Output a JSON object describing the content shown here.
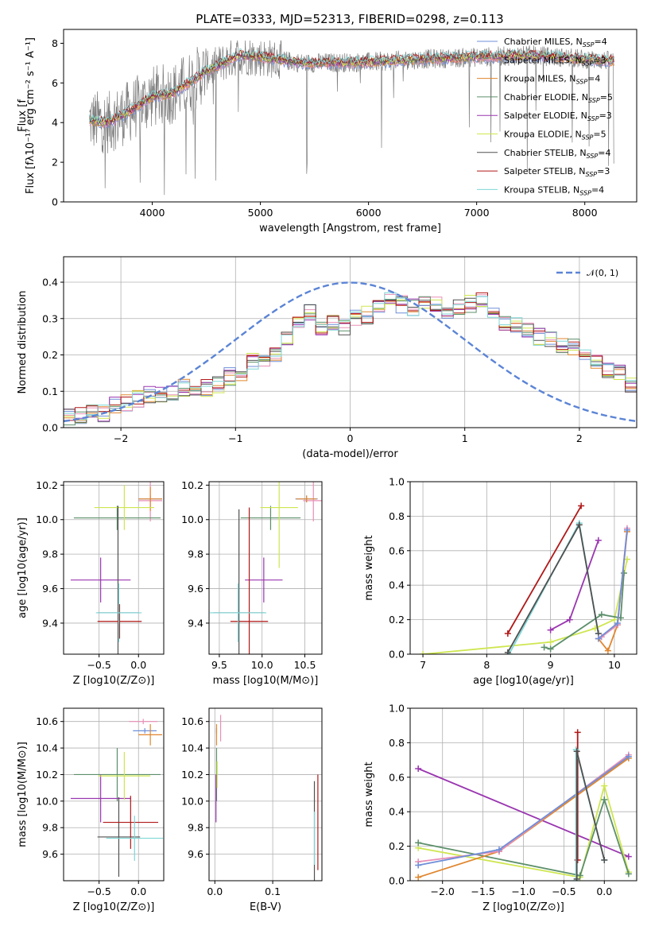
{
  "figure": {
    "title": "PLATE=0333, MJD=52313, FIBERID=0298, z=0.113"
  },
  "models": [
    {
      "name": "Chabrier MILES",
      "nssp": "4",
      "color": "#6f8fd8"
    },
    {
      "name": "Salpeter MILES",
      "nssp": "3",
      "color": "#e88fb5"
    },
    {
      "name": "Kroupa MILES",
      "nssp": "4",
      "color": "#e0862e"
    },
    {
      "name": "Chabrier ELODIE",
      "nssp": "5",
      "color": "#5c8f6a"
    },
    {
      "name": "Salpeter ELODIE",
      "nssp": "3",
      "color": "#9a36b0"
    },
    {
      "name": "Kroupa ELODIE",
      "nssp": "5",
      "color": "#cfe650"
    },
    {
      "name": "Chabrier STELIB",
      "nssp": "4",
      "color": "#505050"
    },
    {
      "name": "Salpeter STELIB",
      "nssp": "3",
      "color": "#b01818"
    },
    {
      "name": "Kroupa STELIB",
      "nssp": "4",
      "color": "#7fd6d6"
    }
  ],
  "legend_label": {
    "prefix": "N",
    "sub": "SSP",
    "eq": "="
  },
  "chart_data": [
    {
      "id": "spectrum",
      "type": "line",
      "xlabel": "wavelength [Angstrom, rest frame]",
      "ylabel": "Flux [f",
      "ylabel_full": "Flux [fλ10⁻¹⁷ erg cm⁻² s⁻¹ A⁻¹]",
      "xlim": [
        3180,
        8480
      ],
      "ylim": [
        0,
        8.7
      ],
      "xticks": [
        4000,
        5000,
        6000,
        7000,
        8000
      ],
      "yticks": [
        0,
        2,
        4,
        6,
        8
      ],
      "grid": false,
      "legend_position": "top-right",
      "data_color": "#7f7f7f",
      "continuum": {
        "x": [
          3420,
          3600,
          3800,
          4000,
          4200,
          4500,
          4800,
          5000,
          5400,
          6000,
          6500,
          7000,
          7500,
          8000,
          8270
        ],
        "y": [
          4.1,
          4.0,
          4.6,
          5.3,
          5.5,
          6.6,
          7.4,
          7.3,
          7.0,
          7.05,
          7.2,
          7.3,
          7.4,
          7.2,
          7.1
        ]
      }
    },
    {
      "id": "residuals",
      "type": "step",
      "xlabel": "(data-model)/error",
      "ylabel": "Normed distribution",
      "xlim": [
        -2.5,
        2.5
      ],
      "ylim": [
        0,
        0.47
      ],
      "xticks": [
        -2,
        -1,
        0,
        1,
        2
      ],
      "yticks": [
        0.0,
        0.1,
        0.2,
        0.3,
        0.4
      ],
      "grid": true,
      "legend_position": "top-right",
      "normal_label": "𝒩(0, 1)",
      "normal_color": "#5b84d6",
      "bin_edges_start": -2.5,
      "bin_width": 0.1,
      "hist": [
        0.03,
        0.03,
        0.04,
        0.04,
        0.06,
        0.07,
        0.08,
        0.09,
        0.09,
        0.1,
        0.11,
        0.1,
        0.11,
        0.12,
        0.14,
        0.15,
        0.18,
        0.19,
        0.2,
        0.24,
        0.28,
        0.32,
        0.27,
        0.29,
        0.28,
        0.3,
        0.31,
        0.33,
        0.35,
        0.34,
        0.33,
        0.35,
        0.34,
        0.32,
        0.33,
        0.34,
        0.35,
        0.31,
        0.29,
        0.28,
        0.27,
        0.25,
        0.24,
        0.23,
        0.22,
        0.2,
        0.18,
        0.16,
        0.15,
        0.12,
        0.11,
        0.1,
        0.09,
        0.08,
        0.06,
        0.05,
        0.04,
        0.04,
        0.03,
        0.03
      ]
    },
    {
      "id": "age-vs-Z",
      "type": "errorbar",
      "xlabel": "Z [log10(Z/Z⊙)]",
      "ylabel": "age  [log10(age/yr)]",
      "xlim": [
        -0.95,
        0.32
      ],
      "ylim": [
        9.22,
        10.22
      ],
      "xticks": [
        -0.5,
        0.0
      ],
      "yticks": [
        9.4,
        9.6,
        9.8,
        10.0,
        10.2
      ],
      "grid": true,
      "points": [
        {
          "m": 0,
          "x": 0.15,
          "y": 10.12,
          "xerr": 0.15,
          "yerr": 0.02
        },
        {
          "m": 1,
          "x": 0.15,
          "y": 10.11,
          "xerr": 0.15,
          "yerr": 0.12
        },
        {
          "m": 2,
          "x": 0.15,
          "y": 10.12,
          "xerr": 0.15,
          "yerr": 0.07
        },
        {
          "m": 3,
          "x": -0.27,
          "y": 10.01,
          "xerr": 0.55,
          "yerr": 0.07
        },
        {
          "m": 4,
          "x": -0.48,
          "y": 9.65,
          "xerr": 0.38,
          "yerr": 0.13
        },
        {
          "m": 5,
          "x": -0.18,
          "y": 10.07,
          "xerr": 0.38,
          "yerr": 0.13
        },
        {
          "m": 6,
          "x": -0.26,
          "y": 9.46,
          "xerr": 0.26,
          "yerr": 0.62
        },
        {
          "m": 7,
          "x": -0.24,
          "y": 9.41,
          "xerr": 0.28,
          "yerr": 0.1
        },
        {
          "m": 8,
          "x": -0.25,
          "y": 9.46,
          "xerr": 0.29,
          "yerr": 0.17
        }
      ]
    },
    {
      "id": "age-vs-mass",
      "type": "errorbar",
      "xlabel": "mass [log10(M/M⊙)]",
      "ylabel": "",
      "xlim": [
        9.38,
        10.7
      ],
      "ylim": [
        9.22,
        10.22
      ],
      "xticks": [
        9.5,
        10.0,
        10.5
      ],
      "yticks": [
        9.4,
        9.6,
        9.8,
        10.0,
        10.2
      ],
      "grid": true,
      "points": [
        {
          "m": 0,
          "x": 10.52,
          "y": 10.12,
          "xerr": 0.13,
          "yerr": 0.02
        },
        {
          "m": 1,
          "x": 10.6,
          "y": 10.11,
          "xerr": 0.12,
          "yerr": 0.12
        },
        {
          "m": 2,
          "x": 10.52,
          "y": 10.12,
          "xerr": 0.12,
          "yerr": 0.02
        },
        {
          "m": 3,
          "x": 10.1,
          "y": 10.01,
          "xerr": 0.35,
          "yerr": 0.07
        },
        {
          "m": 4,
          "x": 10.02,
          "y": 9.65,
          "xerr": 0.22,
          "yerr": 0.13
        },
        {
          "m": 5,
          "x": 10.2,
          "y": 10.07,
          "xerr": 0.22,
          "yerr": 0.35
        },
        {
          "m": 6,
          "x": 9.73,
          "y": 9.46,
          "xerr": 0.3,
          "yerr": 0.6
        },
        {
          "m": 7,
          "x": 9.85,
          "y": 9.41,
          "xerr": 0.22,
          "yerr": 0.66
        },
        {
          "m": 8,
          "x": 9.72,
          "y": 9.46,
          "xerr": 0.33,
          "yerr": 0.17
        }
      ]
    },
    {
      "id": "weight-vs-age",
      "type": "line",
      "xlabel": "age  [log10(age/yr)]",
      "ylabel": "mass weight",
      "xlim": [
        6.8,
        10.35
      ],
      "ylim": [
        0,
        1.0
      ],
      "xticks": [
        7,
        8,
        9,
        10
      ],
      "yticks": [
        0.0,
        0.2,
        0.4,
        0.6,
        0.8,
        1.0
      ],
      "grid": true,
      "series": [
        {
          "m": 5,
          "x": [
            7.0,
            9.0,
            9.7,
            10.0,
            10.2
          ],
          "y": [
            0.0,
            0.07,
            0.15,
            0.2,
            0.55
          ]
        },
        {
          "m": 3,
          "x": [
            8.9,
            9.0,
            9.8,
            10.1,
            10.15
          ],
          "y": [
            0.04,
            0.03,
            0.23,
            0.21,
            0.47
          ]
        },
        {
          "m": 4,
          "x": [
            9.0,
            9.3,
            9.75
          ],
          "y": [
            0.14,
            0.2,
            0.66
          ]
        },
        {
          "m": 7,
          "x": [
            8.33,
            9.48
          ],
          "y": [
            0.12,
            0.86
          ]
        },
        {
          "m": 8,
          "x": [
            8.35,
            9.45,
            9.75
          ],
          "y": [
            0.0,
            0.76,
            0.12
          ]
        },
        {
          "m": 6,
          "x": [
            8.33,
            9.45,
            9.75
          ],
          "y": [
            0.01,
            0.75,
            0.12
          ]
        },
        {
          "m": 2,
          "x": [
            9.75,
            9.9,
            10.05,
            10.2
          ],
          "y": [
            0.09,
            0.02,
            0.17,
            0.71
          ]
        },
        {
          "m": 1,
          "x": [
            9.8,
            10.05,
            10.2
          ],
          "y": [
            0.1,
            0.17,
            0.73
          ]
        },
        {
          "m": 0,
          "x": [
            9.75,
            10.05,
            10.2
          ],
          "y": [
            0.09,
            0.18,
            0.72
          ]
        }
      ]
    },
    {
      "id": "mass-vs-Z",
      "type": "errorbar",
      "xlabel": "Z [log10(Z/Z⊙)]",
      "ylabel": "mass [log10(M/M⊙)]",
      "xlim": [
        -0.95,
        0.32
      ],
      "ylim": [
        9.4,
        10.7
      ],
      "xticks": [
        -0.5,
        0.0
      ],
      "yticks": [
        9.6,
        9.8,
        10.0,
        10.2,
        10.4,
        10.6
      ],
      "grid": true,
      "points": [
        {
          "m": 0,
          "x": 0.08,
          "y": 10.53,
          "xerr": 0.15,
          "yerr": 0.02
        },
        {
          "m": 1,
          "x": 0.06,
          "y": 10.6,
          "xerr": 0.18,
          "yerr": 0.02
        },
        {
          "m": 2,
          "x": 0.15,
          "y": 10.5,
          "xerr": 0.15,
          "yerr": 0.08
        },
        {
          "m": 3,
          "x": -0.27,
          "y": 10.2,
          "xerr": 0.55,
          "yerr": 0.2
        },
        {
          "m": 4,
          "x": -0.48,
          "y": 10.02,
          "xerr": 0.38,
          "yerr": 0.18
        },
        {
          "m": 5,
          "x": -0.18,
          "y": 10.19,
          "xerr": 0.33,
          "yerr": 0.18
        },
        {
          "m": 6,
          "x": -0.25,
          "y": 9.73,
          "xerr": 0.27,
          "yerr": 0.3
        },
        {
          "m": 7,
          "x": -0.1,
          "y": 9.84,
          "xerr": 0.35,
          "yerr": 0.2
        },
        {
          "m": 8,
          "x": -0.05,
          "y": 9.72,
          "xerr": 0.36,
          "yerr": 0.17
        }
      ]
    },
    {
      "id": "mass-vs-EBV",
      "type": "errorbar",
      "xlabel": "E(B-V)",
      "ylabel": "",
      "xlim": [
        -0.01,
        0.185
      ],
      "ylim": [
        9.4,
        10.7
      ],
      "xticks": [
        0.0,
        0.1
      ],
      "yticks": [
        9.6,
        9.8,
        10.0,
        10.2,
        10.4,
        10.6
      ],
      "grid": true,
      "points": [
        {
          "m": 0,
          "x": 0.003,
          "y": 10.53,
          "xerr": 0,
          "yerr": 0.02
        },
        {
          "m": 1,
          "x": 0.01,
          "y": 10.55,
          "xerr": 0,
          "yerr": 0.1
        },
        {
          "m": 2,
          "x": 0.003,
          "y": 10.5,
          "xerr": 0,
          "yerr": 0.08
        },
        {
          "m": 3,
          "x": 0.003,
          "y": 10.2,
          "xerr": 0,
          "yerr": 0.2
        },
        {
          "m": 4,
          "x": 0.002,
          "y": 10.02,
          "xerr": 0,
          "yerr": 0.18
        },
        {
          "m": 5,
          "x": 0.004,
          "y": 10.2,
          "xerr": 0,
          "yerr": 0.1
        },
        {
          "m": 6,
          "x": 0.172,
          "y": 9.73,
          "xerr": 0,
          "yerr": 0.42
        },
        {
          "m": 7,
          "x": 0.178,
          "y": 9.84,
          "xerr": 0,
          "yerr": 0.36
        },
        {
          "m": 8,
          "x": 0.172,
          "y": 9.72,
          "xerr": 0,
          "yerr": 0.2
        }
      ]
    },
    {
      "id": "weight-vs-Z",
      "type": "line",
      "xlabel": "Z [log10(Z/Z⊙)]",
      "ylabel": "mass weight",
      "xlim": [
        -2.4,
        0.4
      ],
      "ylim": [
        0,
        1.0
      ],
      "xticks": [
        -2.0,
        -1.5,
        -1.0,
        -0.5,
        0.0
      ],
      "yticks": [
        0.0,
        0.2,
        0.4,
        0.6,
        0.8,
        1.0
      ],
      "grid": true,
      "series": [
        {
          "m": 4,
          "x": [
            -2.3,
            0.3
          ],
          "y": [
            0.65,
            0.14
          ]
        },
        {
          "m": 5,
          "x": [
            -2.3,
            -0.3,
            0.0,
            0.3
          ],
          "y": [
            0.19,
            0.02,
            0.55,
            0.05
          ]
        },
        {
          "m": 3,
          "x": [
            -2.3,
            -0.3,
            0.0,
            0.3
          ],
          "y": [
            0.22,
            0.03,
            0.47,
            0.04
          ]
        },
        {
          "m": 2,
          "x": [
            -2.3,
            -1.3,
            0.3
          ],
          "y": [
            0.02,
            0.17,
            0.71
          ]
        },
        {
          "m": 1,
          "x": [
            -2.3,
            -1.3,
            0.3
          ],
          "y": [
            0.11,
            0.17,
            0.73
          ]
        },
        {
          "m": 0,
          "x": [
            -2.3,
            -1.3,
            0.3
          ],
          "y": [
            0.09,
            0.18,
            0.72
          ]
        },
        {
          "m": 7,
          "x": [
            -0.33,
            -0.33
          ],
          "y": [
            0.12,
            0.86
          ]
        },
        {
          "m": 8,
          "x": [
            -0.35,
            -0.35,
            0.0
          ],
          "y": [
            0.0,
            0.76,
            0.12
          ]
        },
        {
          "m": 6,
          "x": [
            -0.34,
            -0.34,
            0.0
          ],
          "y": [
            0.01,
            0.75,
            0.12
          ]
        }
      ]
    }
  ]
}
